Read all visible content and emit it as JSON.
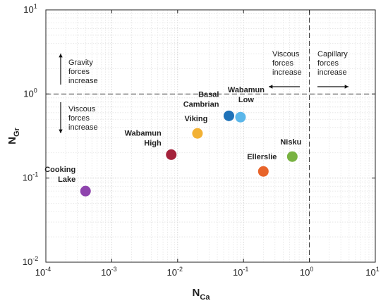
{
  "chart_data": {
    "type": "scatter",
    "xlabel": "N",
    "xlabel_sub": "Ca",
    "ylabel": "N",
    "ylabel_sub": "Gr",
    "x_scale": "log",
    "y_scale": "log",
    "xlim": [
      0.0001,
      10
    ],
    "ylim": [
      0.01,
      10
    ],
    "grid": true,
    "x_ticks": [
      {
        "base": "10",
        "exp": "-4"
      },
      {
        "base": "10",
        "exp": "-3"
      },
      {
        "base": "10",
        "exp": "-2"
      },
      {
        "base": "10",
        "exp": "-1"
      },
      {
        "base": "10",
        "exp": "0"
      },
      {
        "base": "10",
        "exp": "1"
      }
    ],
    "y_ticks": [
      {
        "base": "10",
        "exp": "-2"
      },
      {
        "base": "10",
        "exp": "-1"
      },
      {
        "base": "10",
        "exp": "0"
      },
      {
        "base": "10",
        "exp": "1"
      }
    ],
    "reference_lines": {
      "horizontal_y": 1.0,
      "vertical_x": 1.0
    },
    "points": [
      {
        "label_lines": [
          "Cooking",
          "Lake"
        ],
        "x": 0.0004,
        "y": 0.07,
        "color": "#8e44ad",
        "label_anchor": "left-above"
      },
      {
        "label_lines": [
          "Wabamun",
          "High"
        ],
        "x": 0.008,
        "y": 0.19,
        "color": "#a4223a",
        "label_anchor": "left-above"
      },
      {
        "label_lines": [
          "Viking"
        ],
        "x": 0.02,
        "y": 0.34,
        "color": "#f2b134",
        "label_anchor": "above"
      },
      {
        "label_lines": [
          "Basal",
          "Cambrian"
        ],
        "x": 0.06,
        "y": 0.55,
        "color": "#1f72b8",
        "label_anchor": "left-above"
      },
      {
        "label_lines": [
          "Wabamun",
          "Low"
        ],
        "x": 0.09,
        "y": 0.53,
        "color": "#5bb7ea",
        "label_anchor": "right-above"
      },
      {
        "label_lines": [
          "Ellerslie"
        ],
        "x": 0.2,
        "y": 0.12,
        "color": "#e8642a",
        "label_anchor": "above"
      },
      {
        "label_lines": [
          "Nisku"
        ],
        "x": 0.55,
        "y": 0.18,
        "color": "#78b241",
        "label_anchor": "above"
      }
    ],
    "annotations": {
      "gravity": [
        "Gravity",
        "forces",
        "increase"
      ],
      "viscous_down": [
        "Viscous",
        "forces",
        "increase"
      ],
      "viscous_left": [
        "Viscous",
        "forces",
        "increase"
      ],
      "capillary": [
        "Capillary",
        "forces",
        "increase"
      ]
    }
  }
}
